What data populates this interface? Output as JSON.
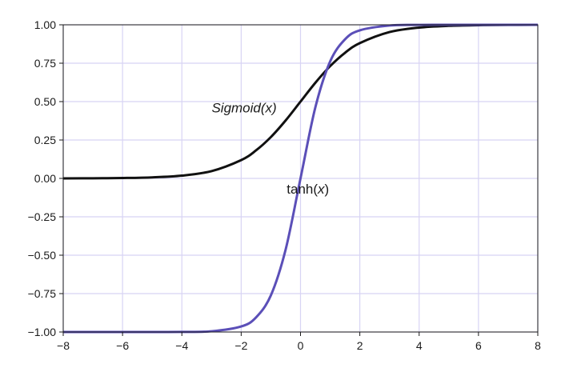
{
  "chart_data": {
    "type": "line",
    "title": "",
    "xlabel": "",
    "ylabel": "",
    "xlim": [
      -8,
      8
    ],
    "ylim": [
      -1,
      1
    ],
    "grid": true,
    "grid_color": "#d8d4f4",
    "x_ticks": [
      -8,
      -6,
      -4,
      -2,
      0,
      2,
      4,
      6,
      8
    ],
    "x_tick_labels": [
      "−8",
      "−6",
      "−4",
      "−2",
      "0",
      "2",
      "4",
      "6",
      "8"
    ],
    "y_ticks": [
      1.0,
      0.75,
      0.5,
      0.25,
      0.0,
      -0.25,
      -0.5,
      -0.75,
      -1.0
    ],
    "y_tick_labels": [
      "1.00",
      "0.75",
      "0.50",
      "0.25",
      "0.00",
      "−0.25",
      "−0.50",
      "−0.75",
      "−1.00"
    ],
    "x": [
      -8,
      -7,
      -6,
      -5,
      -4,
      -3,
      -2,
      -1.5,
      -1,
      -0.5,
      0,
      0.5,
      1,
      1.5,
      2,
      3,
      4,
      5,
      6,
      7,
      8
    ],
    "series": [
      {
        "name": "Sigmoid(x)",
        "color": "#111111",
        "values": [
          0.0003,
          0.0009,
          0.0025,
          0.0067,
          0.018,
          0.0474,
          0.1192,
          0.1824,
          0.2689,
          0.3775,
          0.5,
          0.6225,
          0.7311,
          0.8176,
          0.8808,
          0.9526,
          0.982,
          0.9933,
          0.9975,
          0.9991,
          0.9997
        ]
      },
      {
        "name": "tanh(x)",
        "color": "#5b4fb8",
        "values": [
          -1.0,
          -1.0,
          -1.0,
          -0.9999,
          -0.9993,
          -0.9951,
          -0.964,
          -0.9051,
          -0.7616,
          -0.4621,
          0.0,
          0.4621,
          0.7616,
          0.9051,
          0.964,
          0.9951,
          0.9993,
          0.9999,
          1.0,
          1.0,
          1.0
        ]
      }
    ],
    "annotations": [
      {
        "prefix": "",
        "italic": "Sigmoid(x)",
        "suffix": "",
        "at": [
          -1.9,
          0.43
        ]
      },
      {
        "prefix": "tanh(",
        "italic": "x",
        "suffix": ")",
        "at": [
          0.25,
          -0.1
        ]
      }
    ]
  }
}
